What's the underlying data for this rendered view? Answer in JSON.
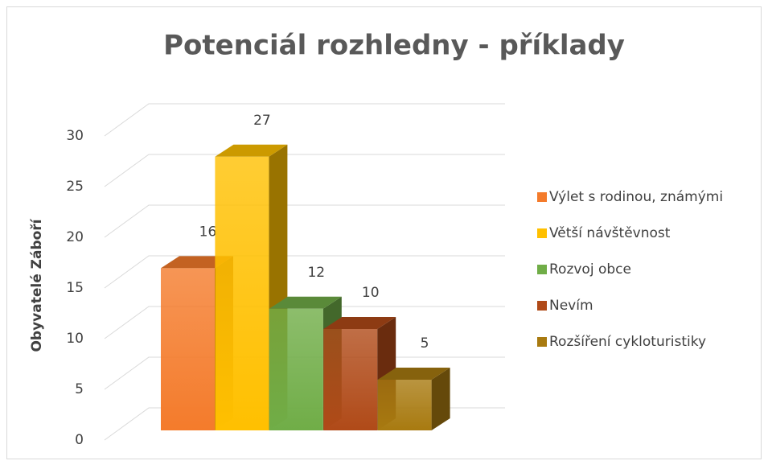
{
  "chart_data": {
    "type": "bar3d",
    "title": "Potenciál rozhledny - příklady",
    "y_label": "Obyvatelé Záboří",
    "series": [
      {
        "name": "Výlet s rodinou, známými",
        "color": "#f47b2b",
        "values": [
          16
        ]
      },
      {
        "name": "Větší návštěvnost",
        "color": "#ffc000",
        "values": [
          27
        ]
      },
      {
        "name": "Rozvoj obce",
        "color": "#70ad47",
        "values": [
          12
        ]
      },
      {
        "name": "Nevím",
        "color": "#b04a18",
        "values": [
          10
        ]
      },
      {
        "name": "Rozšíření cykloturistiky",
        "color": "#a87a10",
        "values": [
          5
        ]
      }
    ],
    "ylim": [
      0,
      30
    ],
    "yticks": [
      0,
      5,
      10,
      15,
      20,
      25,
      30
    ],
    "grid": true,
    "legend": "right"
  }
}
